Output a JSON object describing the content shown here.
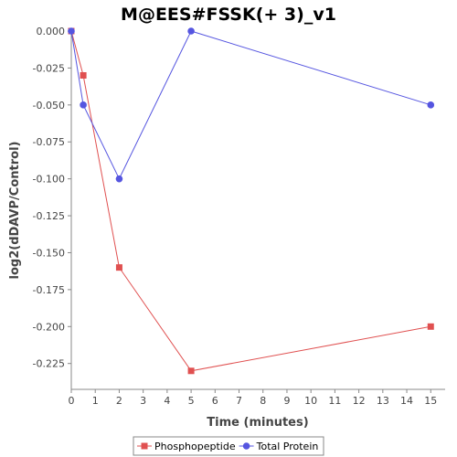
{
  "chart_data": {
    "type": "line",
    "title": "M@EES#FSSK(+ 3)_v1",
    "xlabel": "Time (minutes)",
    "ylabel": "log2(dDAVP/Control)",
    "xlim": [
      0,
      15.6
    ],
    "ylim": [
      -0.2425,
      0
    ],
    "xticks": [
      0,
      1,
      2,
      3,
      4,
      5,
      6,
      7,
      8,
      9,
      10,
      11,
      12,
      13,
      14,
      15
    ],
    "yticks": [
      0,
      -0.025,
      -0.05,
      -0.075,
      -0.1,
      -0.125,
      -0.15,
      -0.175,
      -0.2,
      -0.225
    ],
    "ytick_labels": [
      "0.000",
      "-0.025",
      "-0.050",
      "-0.075",
      "-0.100",
      "-0.125",
      "-0.150",
      "-0.175",
      "-0.200",
      "-0.225"
    ],
    "grid": false,
    "legend_position": "bottom",
    "series": [
      {
        "name": "Phosphopeptide",
        "color": "#e05050",
        "marker": "square",
        "x": [
          0,
          0.5,
          2,
          5,
          15
        ],
        "y": [
          0,
          -0.03,
          -0.16,
          -0.23,
          -0.2
        ]
      },
      {
        "name": "Total Protein",
        "color": "#5555e0",
        "marker": "circle",
        "x": [
          0,
          0.5,
          2,
          5,
          15
        ],
        "y": [
          0,
          -0.05,
          -0.1,
          0,
          -0.05
        ]
      }
    ]
  }
}
